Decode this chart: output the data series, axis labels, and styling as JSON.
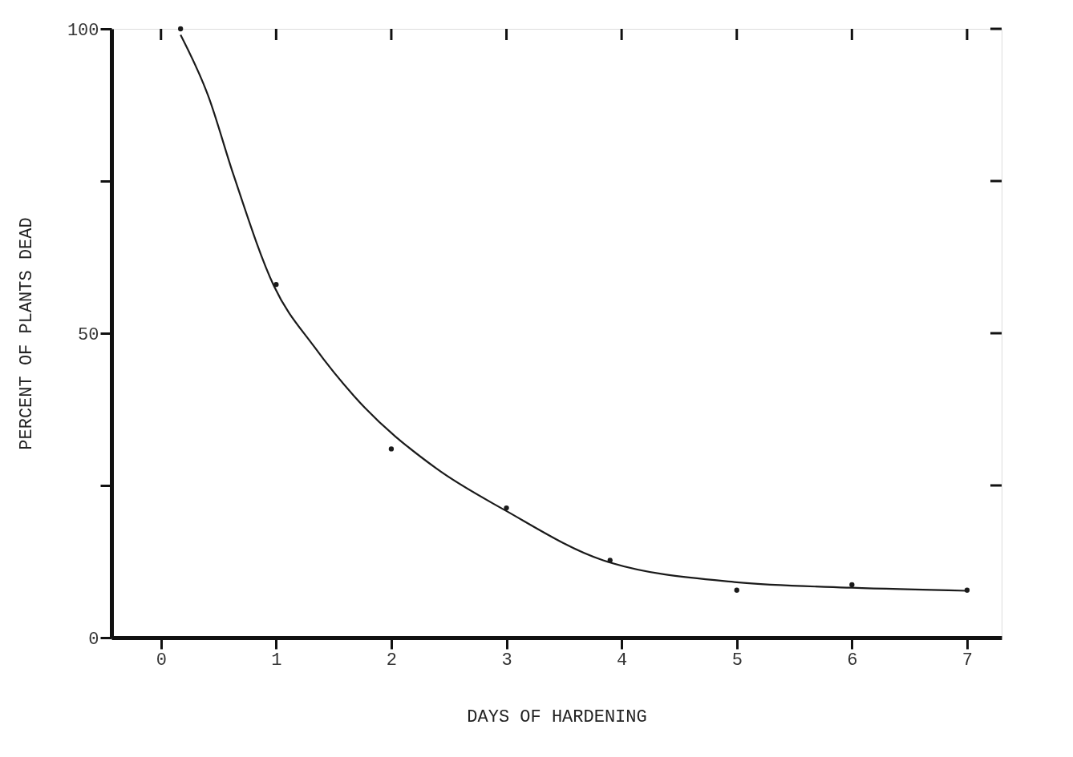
{
  "chart_data": {
    "type": "line",
    "xlabel": "DAYS OF HARDENING",
    "ylabel": "PERCENT OF PLANTS DEAD",
    "xlim": [
      -0.43,
      7.3
    ],
    "ylim": [
      0,
      100
    ],
    "xticks": [
      0,
      1,
      2,
      3,
      4,
      5,
      6,
      7
    ],
    "yticks": [
      0,
      {
        "value": 25,
        "label": null
      },
      50,
      {
        "value": 75,
        "label": null
      },
      100
    ],
    "grid": false,
    "legend": false,
    "series": [
      {
        "color": "#1a1a1a",
        "marker": "none",
        "line_style": "solid",
        "x": [
          0.17,
          0.41,
          0.63,
          0.98,
          1.33,
          1.68,
          2.39,
          2.99,
          3.84,
          5.0,
          6.0,
          7.0
        ],
        "values": [
          99,
          89,
          76,
          57.8,
          47.8,
          39.6,
          27.8,
          20.9,
          12.7,
          9.1,
          8.2,
          7.7
        ]
      },
      {
        "type": "scatter",
        "color": "#1a1a1a",
        "marker": "circle",
        "x": [
          0.17,
          1,
          2,
          3,
          3.9,
          5,
          6,
          7
        ],
        "values": [
          100,
          58,
          31,
          21.3,
          12.7,
          7.8,
          8.7,
          7.8
        ]
      }
    ]
  }
}
